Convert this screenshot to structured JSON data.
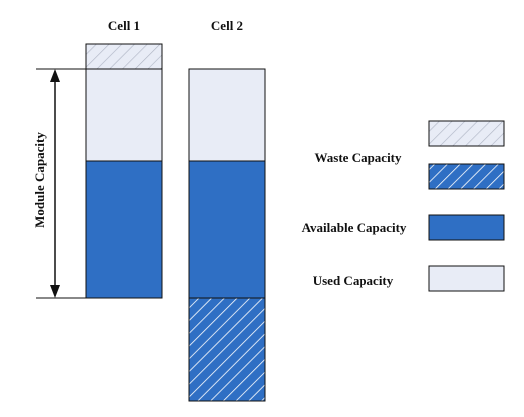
{
  "cells": [
    {
      "label": "Cell 1"
    },
    {
      "label": "Cell 2"
    }
  ],
  "axis_label": "Module Capacity",
  "legend": [
    {
      "label": "Waste Capacity",
      "key": "waste"
    },
    {
      "label": "Available Capacity",
      "key": "available"
    },
    {
      "label": "Used Capacity",
      "key": "used"
    }
  ],
  "colors": {
    "available": "#2f6fc4",
    "used": "#e8ecf6",
    "waste_light_fill": "#e8ecf6",
    "waste_light_hatch": "#b0b6c6",
    "waste_blue_fill": "#2f6fc4",
    "waste_blue_hatch": "#ffffff",
    "outline": "#111111"
  }
}
